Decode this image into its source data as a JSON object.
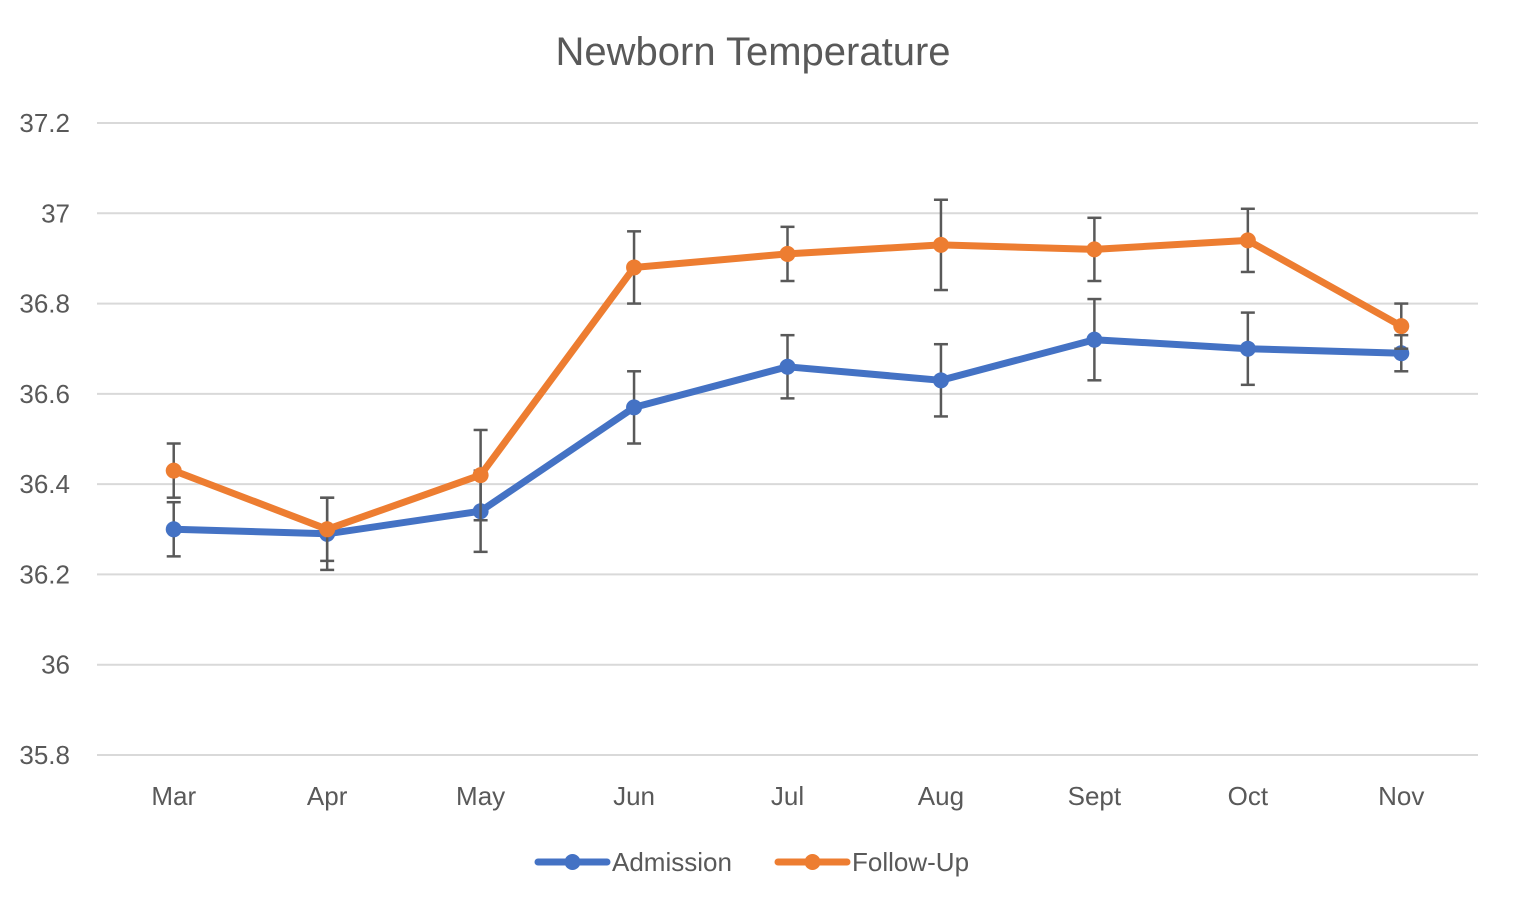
{
  "colors": {
    "admission": "#4472C4",
    "follow_up": "#ED7D31",
    "text": "#595959",
    "grid": "#D9D9D9",
    "error_bar": "#595959"
  },
  "chart_data": {
    "type": "line",
    "title": "Newborn Temperature",
    "xlabel": "",
    "ylabel": "",
    "categories": [
      "Mar",
      "Apr",
      "May",
      "Jun",
      "Jul",
      "Aug",
      "Sept",
      "Oct",
      "Nov"
    ],
    "ylim": [
      35.8,
      37.2
    ],
    "yticks": [
      35.8,
      36,
      36.2,
      36.4,
      36.6,
      36.8,
      37,
      37.2
    ],
    "ytick_labels": [
      "35.8",
      "36",
      "36.2",
      "36.4",
      "36.6",
      "36.8",
      "37",
      "37.2"
    ],
    "grid": true,
    "legend_position": "bottom",
    "series": [
      {
        "name": "Admission",
        "color": "#4472C4",
        "values": [
          36.3,
          36.29,
          36.34,
          36.57,
          36.66,
          36.63,
          36.72,
          36.7,
          36.69
        ],
        "error": [
          0.06,
          0.08,
          0.09,
          0.08,
          0.07,
          0.08,
          0.09,
          0.08,
          0.04
        ]
      },
      {
        "name": "Follow-Up",
        "color": "#ED7D31",
        "values": [
          36.43,
          36.3,
          36.42,
          36.88,
          36.91,
          36.93,
          36.92,
          36.94,
          36.75
        ],
        "error": [
          0.06,
          0.07,
          0.1,
          0.08,
          0.06,
          0.1,
          0.07,
          0.07,
          0.05
        ]
      }
    ]
  }
}
